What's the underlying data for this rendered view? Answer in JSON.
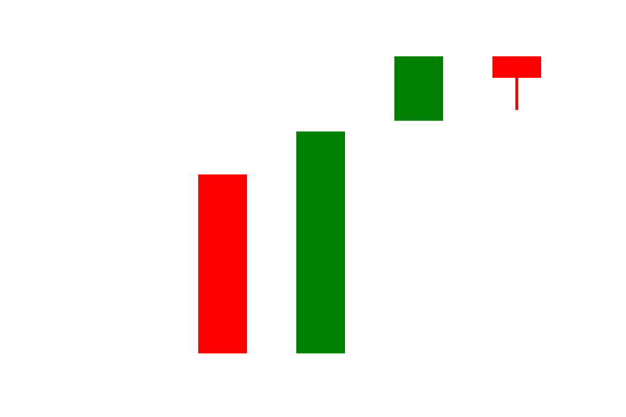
{
  "chart_data": {
    "type": "candlestick",
    "title": "",
    "xlabel": "",
    "ylabel": "",
    "axes_visible": false,
    "grid": false,
    "ylim": [
      0,
      100
    ],
    "colors": {
      "up": "#008000",
      "down": "#ff0000",
      "background": "#ffffff"
    },
    "candles": [
      {
        "open": 60,
        "close": 10,
        "high": 60,
        "low": 10,
        "direction": "down"
      },
      {
        "open": 10,
        "close": 72,
        "high": 72,
        "low": 10,
        "direction": "up"
      },
      {
        "open": 75,
        "close": 93,
        "high": 93,
        "low": 75,
        "direction": "up"
      },
      {
        "open": 93,
        "close": 87,
        "high": 93,
        "low": 78,
        "direction": "down"
      }
    ]
  }
}
